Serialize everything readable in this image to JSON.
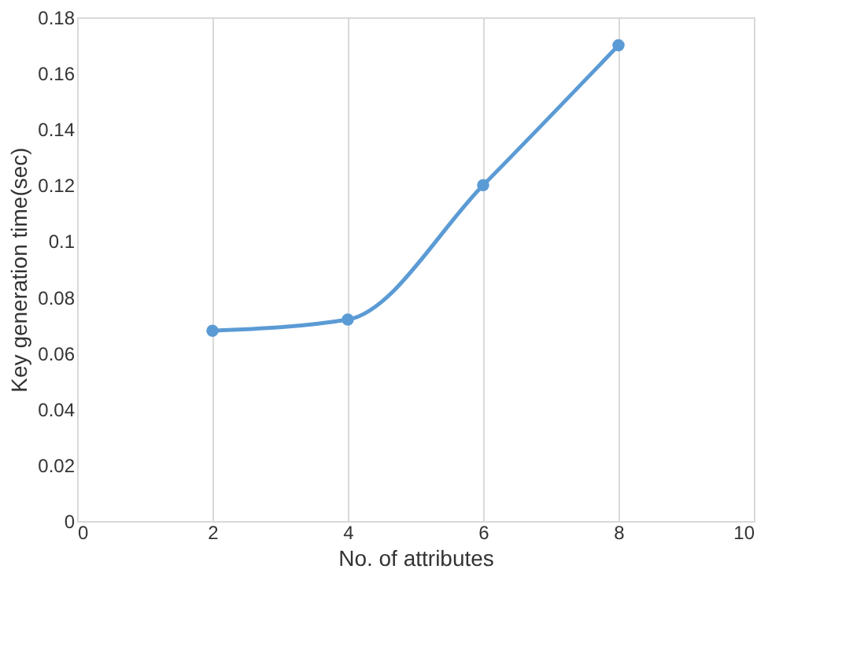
{
  "chart_data": {
    "type": "line",
    "xlabel": "No. of attributes",
    "ylabel": "Key generation time(sec)",
    "x": [
      2,
      4,
      6,
      8
    ],
    "series": [
      {
        "color": "#5b9bd5",
        "values": [
          0.068,
          0.072,
          0.12,
          0.17
        ]
      }
    ],
    "xlim": [
      0,
      10
    ],
    "xticks": [
      0,
      2,
      4,
      6,
      8,
      10
    ],
    "ylim": [
      0,
      0.18
    ],
    "yticks": [
      0,
      0.02,
      0.04,
      0.06,
      0.08,
      0.1,
      0.12,
      0.14,
      0.16,
      0.18
    ],
    "grid": "x",
    "marker": "circle",
    "line_style": "solid"
  }
}
